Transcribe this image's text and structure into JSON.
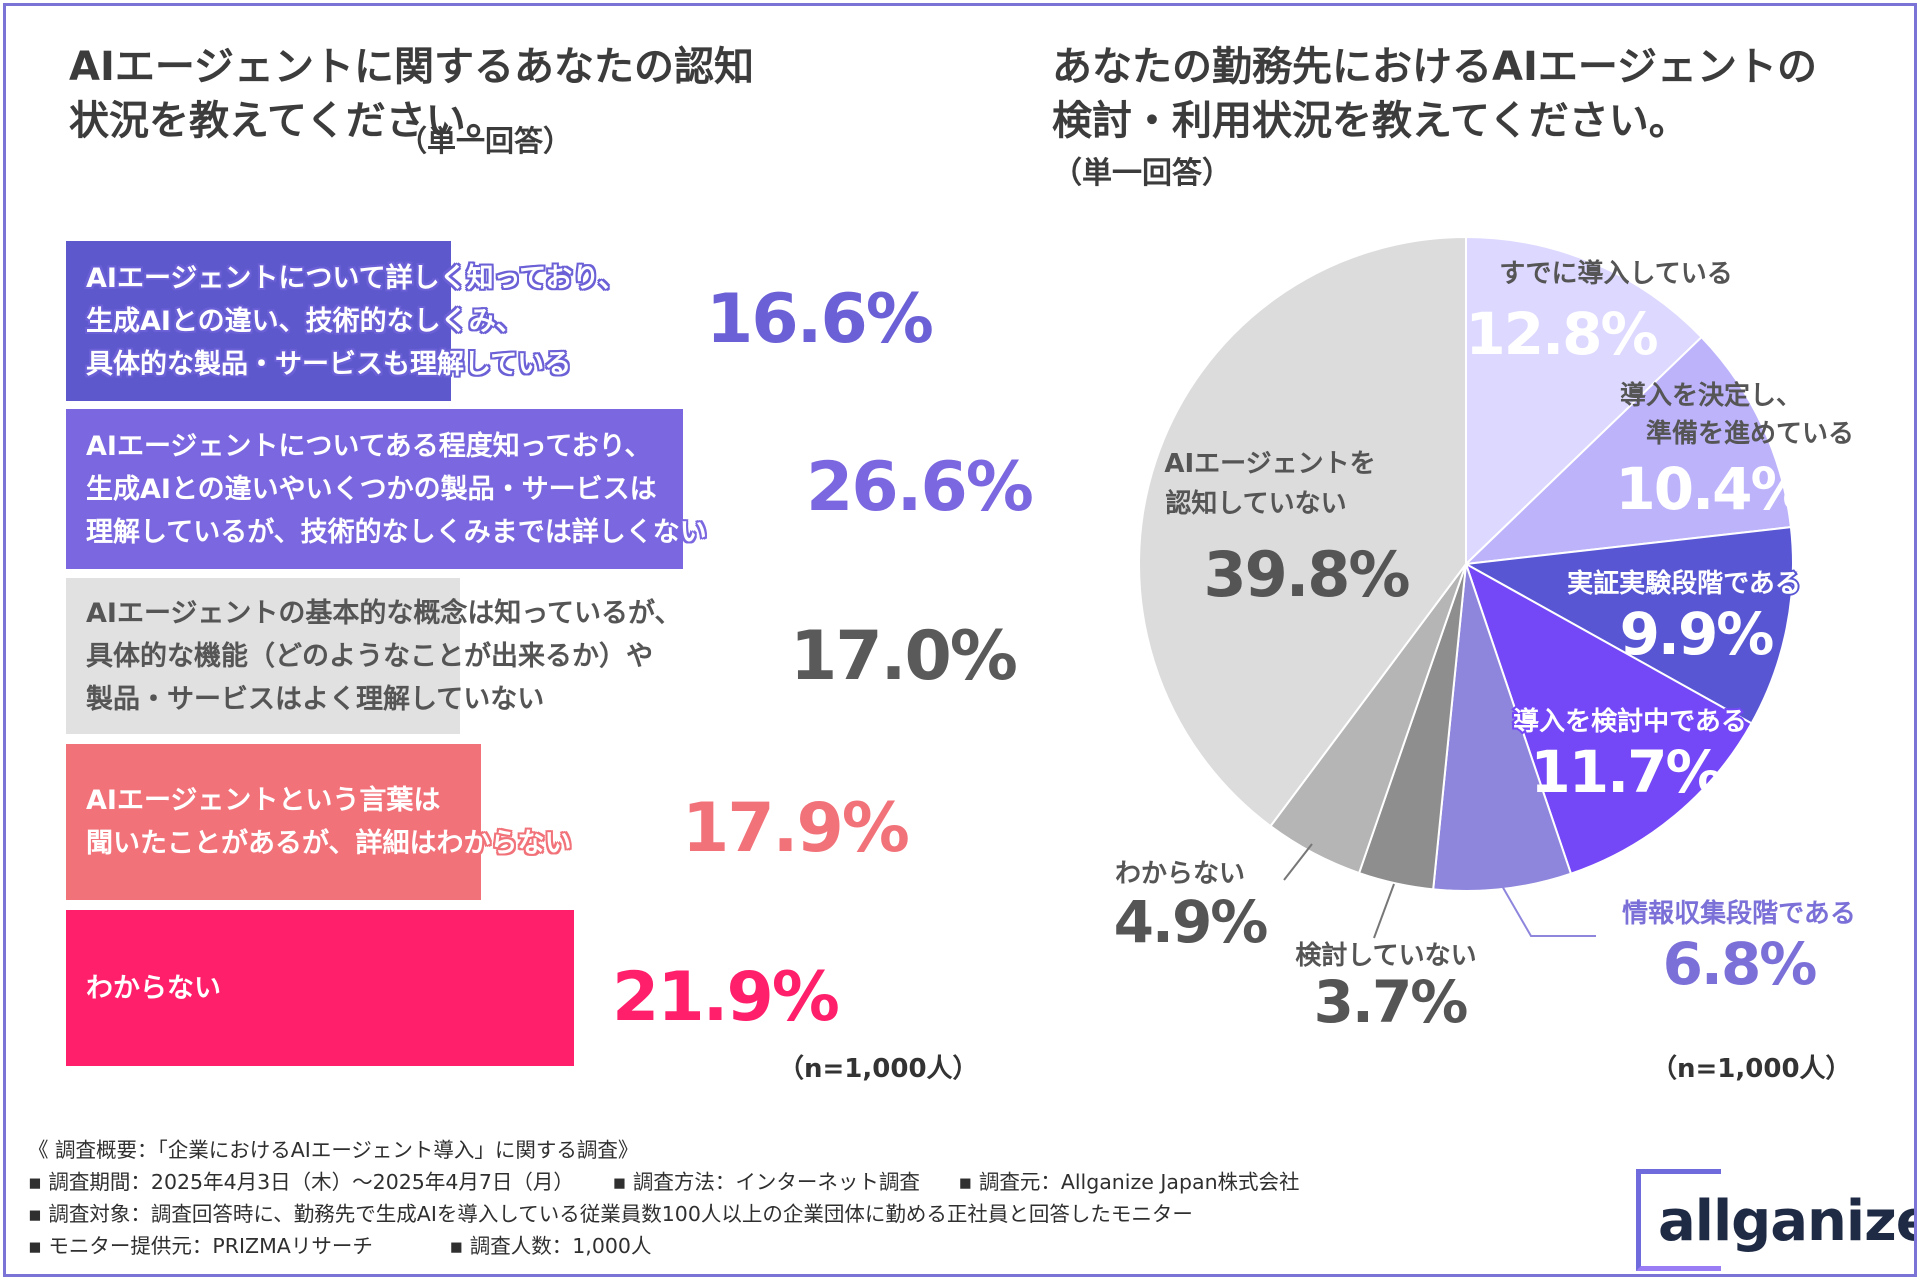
{
  "left_chart": {
    "title": "AIエージェントに関するあなたの認知状況を教えてください。",
    "subtitle": "（単一回答）",
    "n_note": "（n=1,000人）",
    "chart_data": {
      "type": "bar",
      "orientation": "horizontal",
      "unit": "%",
      "categories": [
        "AIエージェントについて詳しく知っており、生成AIとの違い、技術的なしくみ、具体的な製品・サービスも理解している",
        "AIエージェントについてある程度知っており、生成AIとの違いやいくつかの製品・サービスは理解しているが、技術的なしくみまでは詳しくない",
        "AIエージェントの基本的な概念は知っているが、具体的な機能（どのようなことが出来るか）や製品・サービスはよく理解していない",
        "AIエージェントという言葉は聞いたことがあるが、詳細はわからない",
        "わからない"
      ],
      "values": [
        16.6,
        26.6,
        17.0,
        17.9,
        21.9
      ],
      "value_labels": [
        "16.6%",
        "26.6%",
        "17.0%",
        "17.9%",
        "21.9%"
      ],
      "colors": [
        "#5e58cd",
        "#7b67df",
        "#e1e1e1",
        "#f2727a",
        "#ff1f6b"
      ],
      "value_colors": [
        "#6b60d6",
        "#7b67df",
        "#5a5a5a",
        "#f2727a",
        "#ff1f6b"
      ],
      "lines": [
        [
          "AIエージェントについて詳しく知っており、",
          "生成AIとの違い、技術的なしくみ、",
          "具体的な製品・サービスも理解している"
        ],
        [
          "AIエージェントについてある程度知っており、",
          "生成AIとの違いやいくつかの製品・サービスは",
          "理解しているが、技術的なしくみまでは詳しくない"
        ],
        [
          "AIエージェントの基本的な概念は知っているが、",
          "具体的な機能（どのようなことが出来るか）や",
          "製品・サービスはよく理解していない"
        ],
        [
          "AIエージェントという言葉は",
          "聞いたことがあるが、詳細はわからない"
        ],
        [
          "わからない"
        ]
      ],
      "xlim": [
        0,
        50
      ]
    }
  },
  "right_chart": {
    "title_line1": "あなたの勤務先におけるAIエージェントの",
    "title_line2": "検討・利用状況を教えてください。",
    "subtitle": "（単一回答）",
    "n_note": "（n=1,000人）",
    "chart_data": {
      "type": "pie",
      "unit": "%",
      "start": "12 o'clock, clockwise",
      "slices": [
        {
          "label": "すでに導入している",
          "label_lines": [
            "すでに導入している"
          ],
          "value": 12.8,
          "value_label": "12.8%",
          "color": "#dcd8ff",
          "label_color": "#555555",
          "value_color": "#ffffff"
        },
        {
          "label": "導入を決定し、準備を進めている",
          "label_lines": [
            "導入を決定し、",
            "準備を進めている"
          ],
          "value": 10.4,
          "value_label": "10.4%",
          "color": "#bcb3fb",
          "label_color": "#555555",
          "value_color": "#ffffff"
        },
        {
          "label": "実証実験段階である",
          "label_lines": [
            "実証実験段階である"
          ],
          "value": 9.9,
          "value_label": "9.9%",
          "color": "#5856d3",
          "label_color": "#ffffff",
          "value_color": "#ffffff"
        },
        {
          "label": "導入を検討中である",
          "label_lines": [
            "導入を検討中である"
          ],
          "value": 11.7,
          "value_label": "11.7%",
          "color": "#7448f6",
          "label_color": "#ffffff",
          "value_color": "#ffffff"
        },
        {
          "label": "情報収集段階である",
          "label_lines": [
            "情報収集段階である"
          ],
          "value": 6.8,
          "value_label": "6.8%",
          "color": "#8e86dd",
          "label_color": "#7b70d8",
          "value_color": "#7b70d8"
        },
        {
          "label": "検討していない",
          "label_lines": [
            "検討していない"
          ],
          "value": 3.7,
          "value_label": "3.7%",
          "color": "#8e8e8e",
          "label_color": "#555555",
          "value_color": "#555555"
        },
        {
          "label": "わからない",
          "label_lines": [
            "わからない"
          ],
          "value": 4.9,
          "value_label": "4.9%",
          "color": "#b5b5b5",
          "label_color": "#555555",
          "value_color": "#555555"
        },
        {
          "label": "AIエージェントを認知していない",
          "label_lines": [
            "AIエージェントを",
            "認知していない"
          ],
          "value": 39.8,
          "value_label": "39.8%",
          "color": "#dcdcdc",
          "label_color": "#555555",
          "value_color": "#555555"
        }
      ]
    }
  },
  "footer": {
    "overview": "《 調査概要：「企業におけるAIエージェント導入」に関する調査》",
    "period": "▪ 調査期間：2025年4月3日（木）〜2025年4月7日（月）",
    "method": "▪ 調査方法：インターネット調査",
    "surveyor": "▪ 調査元：Allganize Japan株式会社",
    "target": "▪ 調査対象：調査回答時に、勤務先で生成AIを導入している従業員数100人以上の企業団体に勤める正社員と回答したモニター",
    "provider": "▪ モニター提供元：PRIZMAリサーチ",
    "respondents": "▪ 調査人数：1,000人"
  },
  "logo": {
    "text": "allganize"
  }
}
